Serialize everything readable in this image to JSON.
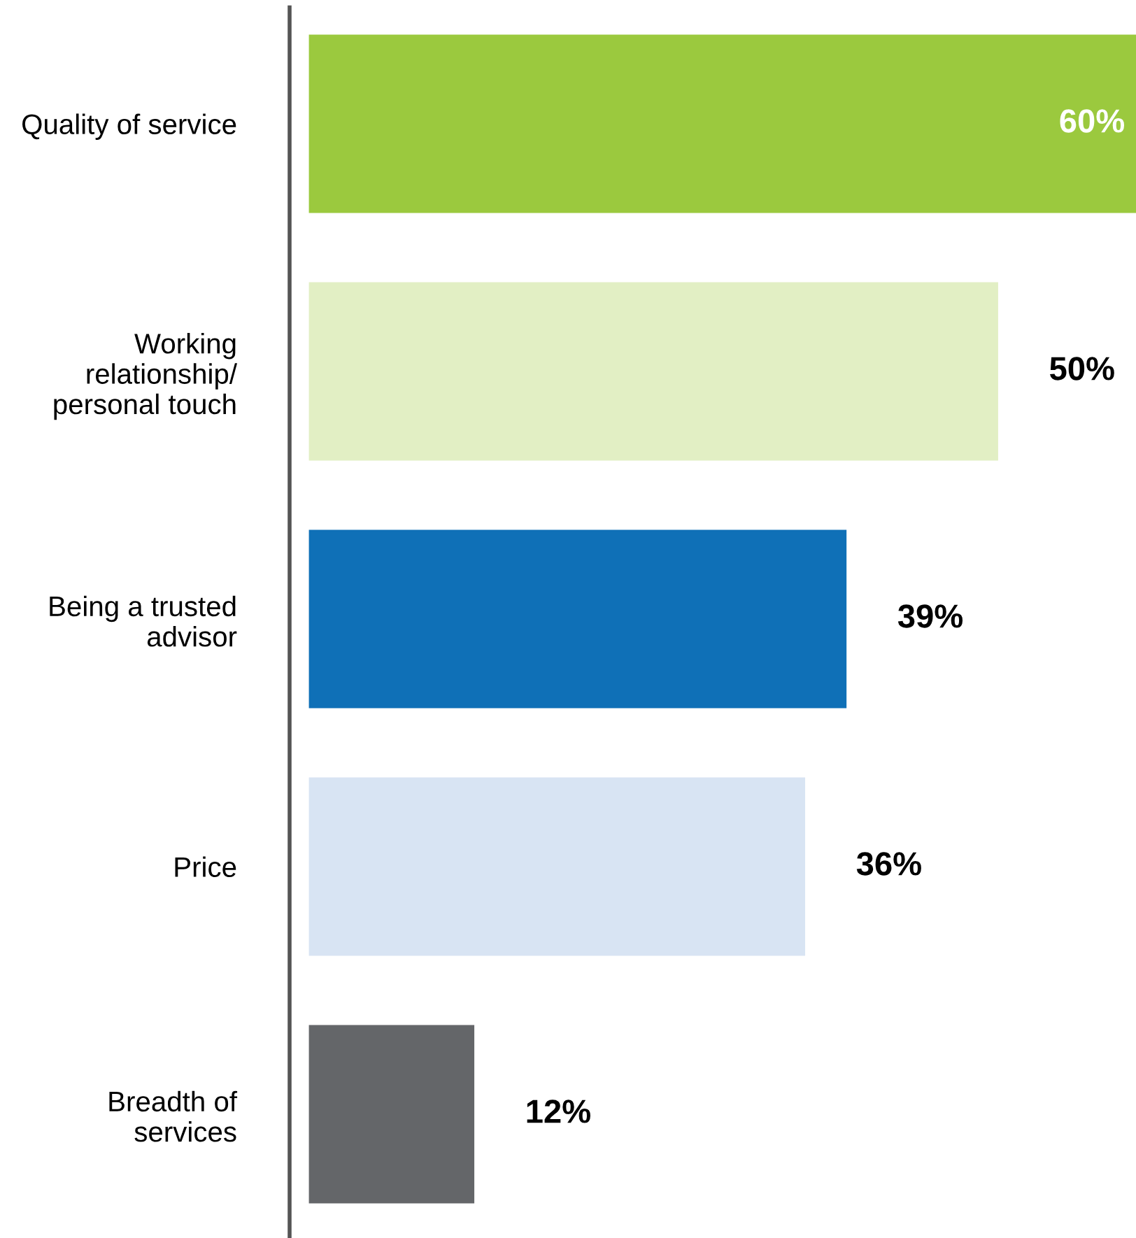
{
  "chart_data": {
    "type": "bar",
    "orientation": "horizontal",
    "categories": [
      "Quality of service",
      "Working\nrelationship/\npersonal touch",
      "Being a trusted\nadvisor",
      "Price",
      "Breadth of\nservices"
    ],
    "values": [
      60,
      50,
      39,
      36,
      12
    ],
    "colors": [
      "#9bc93e",
      "#e2efc4",
      "#0f70b7",
      "#d8e4f3",
      "#646669"
    ],
    "value_labels": [
      "60%",
      "50%",
      "39%",
      "36%",
      "12%"
    ],
    "xlim": [
      -1.4,
      60
    ],
    "grid": false,
    "legend": false,
    "tick_labels": "y"
  }
}
